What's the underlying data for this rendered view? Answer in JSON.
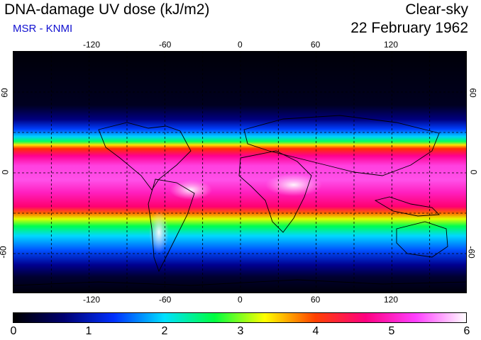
{
  "title": "DNA-damage UV dose (kJ/m2)",
  "source": "MSR - KNMI",
  "condition": "Clear-sky",
  "date": "22 February 1962",
  "map": {
    "lon_ticks": [
      "-120",
      "-60",
      "0",
      "60",
      "120"
    ],
    "lat_ticks": [
      "60",
      "0",
      "-60"
    ],
    "lon_grid_deg": [
      -150,
      -120,
      -90,
      -60,
      -30,
      0,
      30,
      60,
      90,
      120,
      150
    ],
    "lat_grid_deg": [
      60,
      30,
      0,
      -30,
      -60
    ],
    "lon_range": [
      -180,
      180
    ],
    "lat_range": [
      -90,
      90
    ]
  },
  "colorbar": {
    "ticks": [
      "0",
      "1",
      "2",
      "3",
      "4",
      "5",
      "6"
    ],
    "range": [
      0,
      6
    ],
    "colors": [
      "#000000",
      "#000070",
      "#0030ff",
      "#00e0ff",
      "#00ff40",
      "#ffff00",
      "#ff4000",
      "#ff0080",
      "#ff40ff",
      "#ffffff"
    ]
  }
}
